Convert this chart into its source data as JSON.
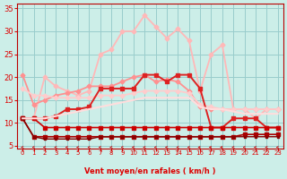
{
  "x": [
    0,
    1,
    2,
    3,
    4,
    5,
    6,
    7,
    8,
    9,
    10,
    11,
    12,
    13,
    14,
    15,
    16,
    17,
    18,
    19,
    20,
    21,
    22,
    23
  ],
  "lines": [
    {
      "y": [
        11,
        11,
        20,
        18,
        17,
        16,
        17,
        25,
        26,
        30,
        30,
        33.5,
        31,
        28.5,
        30.5,
        28,
        17,
        25,
        27,
        13,
        13,
        11,
        13,
        13
      ],
      "color": "#ffb8b8",
      "lw": 1.3,
      "marker": "D",
      "ms": 2.5
    },
    {
      "y": [
        20.5,
        14,
        15,
        16,
        16.5,
        17,
        18,
        18,
        18,
        19,
        20,
        20.5,
        19,
        19.5,
        19,
        17,
        13.5,
        13,
        13,
        13,
        13,
        13,
        13,
        13
      ],
      "color": "#ff9090",
      "lw": 1.3,
      "marker": "D",
      "ms": 2.5
    },
    {
      "y": [
        17.5,
        16,
        16,
        15.5,
        15.5,
        15.5,
        15.5,
        16,
        16,
        16,
        16.5,
        17,
        17,
        17,
        17,
        16.5,
        14,
        13.5,
        13,
        13,
        13,
        13,
        13,
        13
      ],
      "color": "#ffcccc",
      "lw": 1.3,
      "marker": "D",
      "ms": 2.5
    },
    {
      "y": [
        11,
        11,
        11,
        11.5,
        13,
        13,
        13.5,
        17.5,
        17.5,
        17.5,
        17.5,
        20.5,
        20.5,
        19,
        20.5,
        20.5,
        17.5,
        9,
        9,
        11,
        11,
        11,
        9,
        9
      ],
      "color": "#dd2222",
      "lw": 1.4,
      "marker": "s",
      "ms": 3
    },
    {
      "y": [
        11,
        11,
        9,
        9,
        9,
        9,
        9,
        9,
        9,
        9,
        9,
        9,
        9,
        9,
        9,
        9,
        9,
        9,
        9,
        9,
        9,
        9,
        9,
        9
      ],
      "color": "#cc0000",
      "lw": 1.2,
      "marker": "s",
      "ms": 2.5
    },
    {
      "y": [
        11,
        7,
        7,
        7,
        7,
        7,
        7,
        7,
        7,
        7,
        7,
        7,
        7,
        7,
        7,
        7,
        7,
        7,
        7,
        7,
        7.5,
        7.5,
        7.5,
        7.5
      ],
      "color": "#aa0000",
      "lw": 1.2,
      "marker": "s",
      "ms": 2.5
    },
    {
      "y": [
        11,
        7,
        6.5,
        6.5,
        6.5,
        6.5,
        6.5,
        7,
        7,
        7,
        7,
        7,
        7,
        7,
        7,
        7,
        7,
        7,
        7,
        7,
        7,
        7,
        7,
        7
      ],
      "color": "#880000",
      "lw": 1.0,
      "marker": "s",
      "ms": 2
    },
    {
      "y": [
        11,
        11,
        11,
        11.5,
        12,
        12.5,
        13,
        13.5,
        14,
        14.5,
        15,
        15.5,
        15.5,
        15.5,
        15.5,
        15.5,
        13.5,
        13,
        13,
        12.5,
        12,
        12,
        12,
        12
      ],
      "color": "#ffdddd",
      "lw": 1.5,
      "marker": null,
      "ms": 0
    }
  ],
  "xlim": [
    -0.5,
    23.5
  ],
  "ylim": [
    4.5,
    36
  ],
  "yticks": [
    5,
    10,
    15,
    20,
    25,
    30,
    35
  ],
  "xticks": [
    0,
    1,
    2,
    3,
    4,
    5,
    6,
    7,
    8,
    9,
    10,
    11,
    12,
    13,
    14,
    15,
    16,
    17,
    18,
    19,
    20,
    21,
    22,
    23
  ],
  "xlabel": "Vent moyen/en rafales ( km/h )",
  "bg_color": "#cceee8",
  "grid_color": "#99cccc",
  "tick_color": "#dd0000",
  "label_color": "#dd0000"
}
